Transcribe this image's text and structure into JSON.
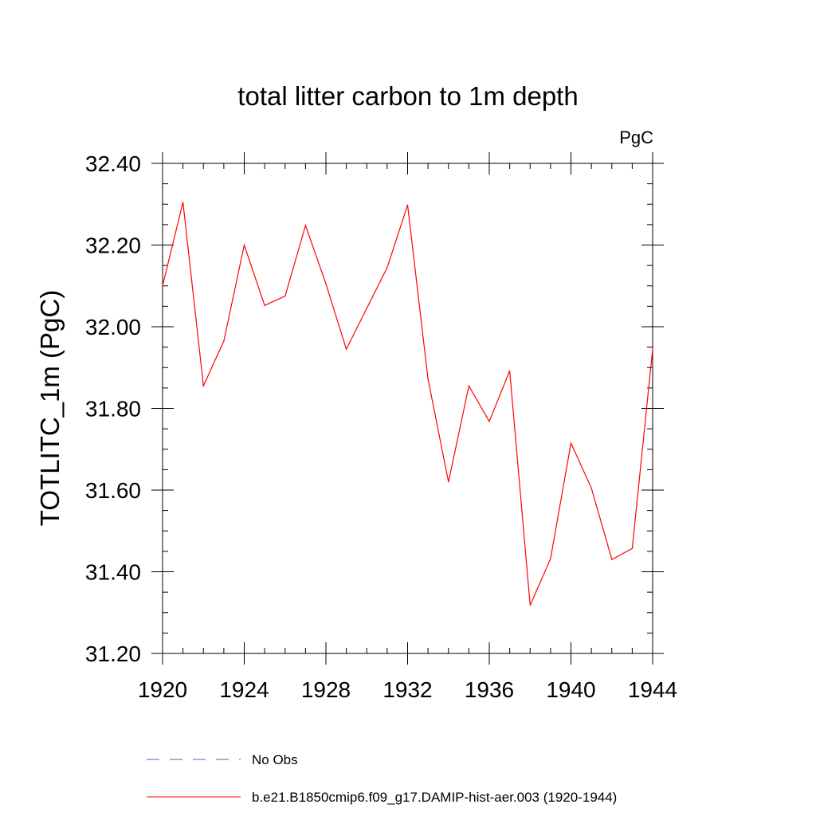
{
  "chart_data": {
    "type": "line",
    "title": "total litter carbon to 1m depth",
    "units_label": "PgC",
    "xlabel": "",
    "ylabel": "TOTLITC_1m  (PgC)",
    "xlim": [
      1920,
      1944
    ],
    "ylim": [
      31.2,
      32.4
    ],
    "xticks": [
      1920,
      1924,
      1928,
      1932,
      1936,
      1940,
      1944
    ],
    "yticks": [
      31.2,
      31.4,
      31.6,
      31.8,
      32.0,
      32.2,
      32.4
    ],
    "ytick_labels": [
      "31.20",
      "31.40",
      "31.60",
      "31.80",
      "32.00",
      "32.20",
      "32.40"
    ],
    "grid": false,
    "legend_position": "bottom",
    "series": [
      {
        "name": "b.e21.B1850cmip6.f09_g17.DAMIP-hist-aer.003 (1920-1944)",
        "color": "#ff0000",
        "style": "solid",
        "x": [
          1920,
          1921,
          1922,
          1923,
          1924,
          1925,
          1926,
          1927,
          1928,
          1929,
          1930,
          1931,
          1932,
          1933,
          1934,
          1935,
          1936,
          1937,
          1938,
          1939,
          1940,
          1941,
          1942,
          1943,
          1944
        ],
        "y": [
          32.1,
          32.305,
          31.855,
          31.965,
          32.2,
          32.052,
          32.075,
          32.248,
          32.105,
          31.945,
          32.045,
          32.145,
          32.298,
          31.872,
          31.62,
          31.855,
          31.768,
          31.892,
          31.318,
          31.432,
          31.715,
          31.605,
          31.43,
          31.457,
          31.945
        ]
      }
    ],
    "legend": [
      {
        "label": "No Obs",
        "color": "#5a5ab4",
        "style": "dashed"
      },
      {
        "label": "b.e21.B1850cmip6.f09_g17.DAMIP-hist-aer.003 (1920-1944)",
        "color": "#ff0000",
        "style": "solid"
      }
    ]
  }
}
